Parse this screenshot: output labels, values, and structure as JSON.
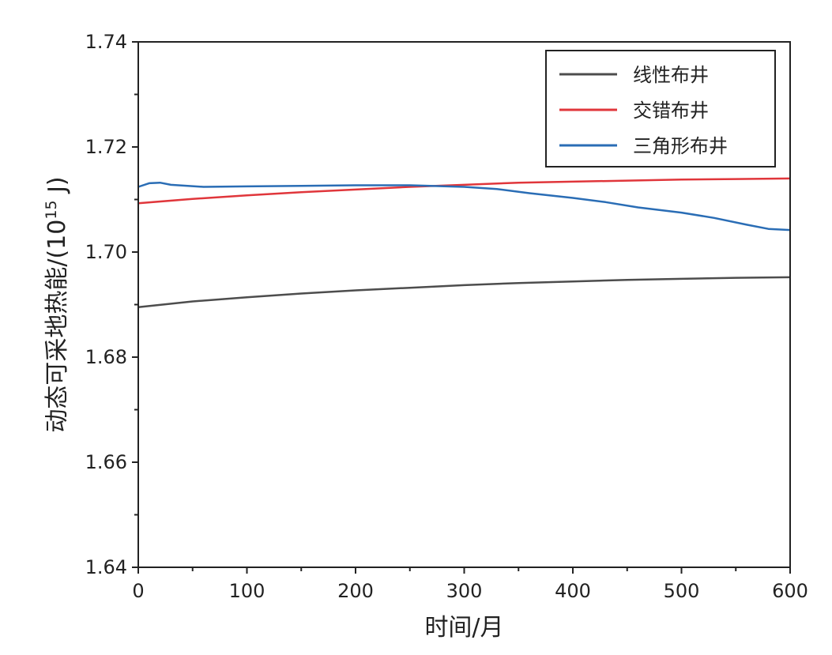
{
  "chart_data": {
    "type": "line",
    "title": "",
    "xlabel": "时间/月",
    "ylabel_main": "动态可采地热能/(10",
    "ylabel_sup": "15",
    "ylabel_end": " J)",
    "xlim": [
      0,
      600
    ],
    "ylim": [
      1.64,
      1.74
    ],
    "x_ticks": [
      "0",
      "100",
      "200",
      "300",
      "400",
      "500",
      "600"
    ],
    "y_ticks": [
      "1.64",
      "1.66",
      "1.68",
      "1.70",
      "1.72",
      "1.74"
    ],
    "grid": false,
    "legend_position": "top-right",
    "series": [
      {
        "name": "线性布井",
        "color": "#4d4d4d",
        "x": [
          0,
          50,
          100,
          150,
          200,
          250,
          300,
          350,
          400,
          450,
          500,
          550,
          600
        ],
        "y": [
          1.6895,
          1.6906,
          1.6914,
          1.6921,
          1.6927,
          1.6932,
          1.6937,
          1.6941,
          1.6944,
          1.6947,
          1.6949,
          1.6951,
          1.6952
        ]
      },
      {
        "name": "交错布井",
        "color": "#e0363b",
        "x": [
          0,
          50,
          100,
          150,
          200,
          250,
          300,
          350,
          400,
          450,
          500,
          550,
          600
        ],
        "y": [
          1.7093,
          1.7101,
          1.7108,
          1.7114,
          1.7119,
          1.7124,
          1.7128,
          1.7132,
          1.7134,
          1.7136,
          1.7138,
          1.7139,
          1.714
        ]
      },
      {
        "name": "三角形布井",
        "color": "#2a6db5",
        "x": [
          0,
          10,
          20,
          30,
          60,
          100,
          150,
          200,
          250,
          300,
          330,
          360,
          400,
          430,
          460,
          500,
          530,
          560,
          580,
          600
        ],
        "y": [
          1.7124,
          1.7131,
          1.7132,
          1.7128,
          1.7124,
          1.7125,
          1.7126,
          1.7127,
          1.7127,
          1.7124,
          1.712,
          1.7112,
          1.7103,
          1.7095,
          1.7085,
          1.7075,
          1.7065,
          1.7052,
          1.7044,
          1.7042
        ]
      }
    ]
  }
}
